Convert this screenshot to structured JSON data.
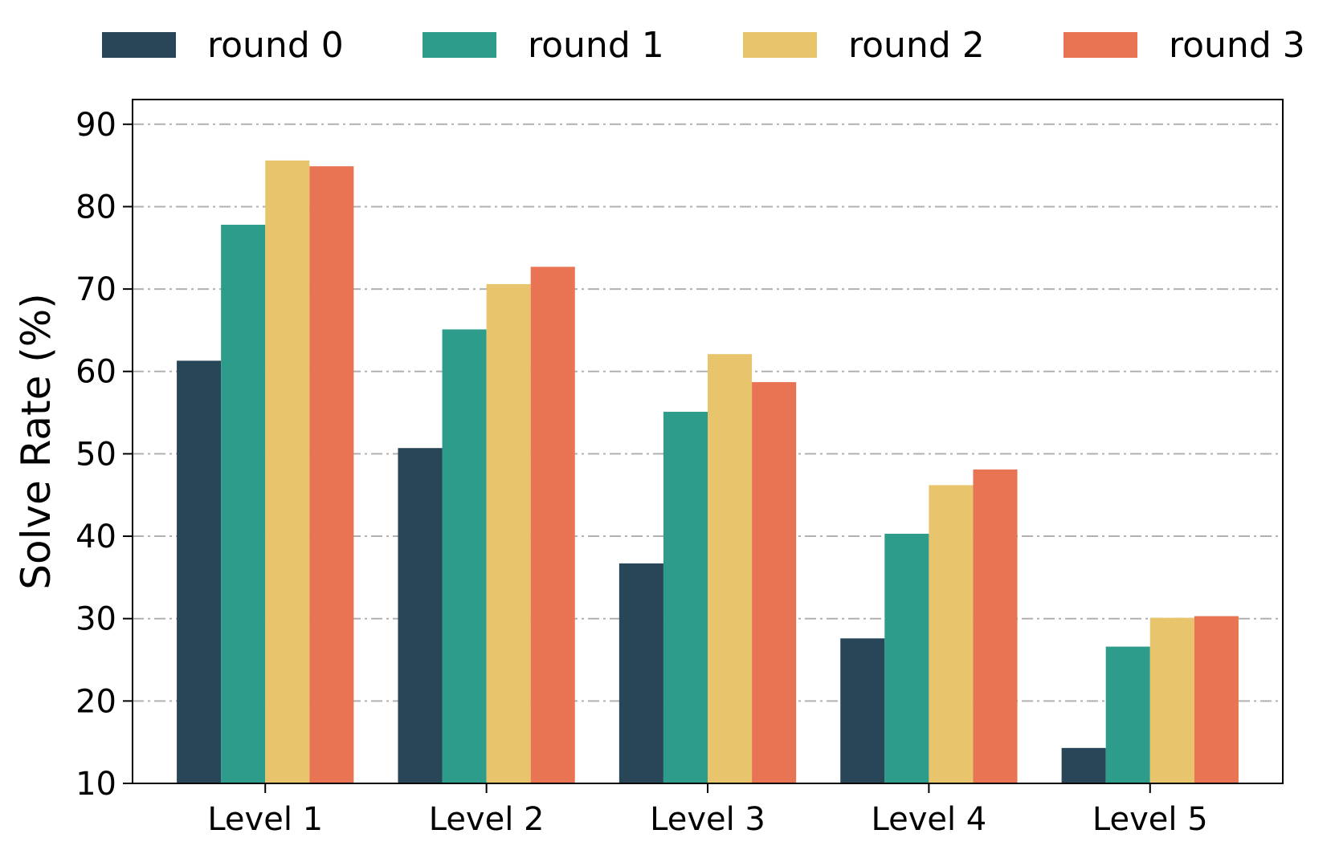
{
  "chart_data": {
    "type": "bar",
    "categories": [
      "Level 1",
      "Level 2",
      "Level 3",
      "Level 4",
      "Level 5"
    ],
    "series": [
      {
        "name": "round 0",
        "color": "#284657",
        "values": [
          61.3,
          50.7,
          36.7,
          27.6,
          14.3
        ]
      },
      {
        "name": "round 1",
        "color": "#2d9c8b",
        "values": [
          77.8,
          65.1,
          55.1,
          40.3,
          26.6
        ]
      },
      {
        "name": "round 2",
        "color": "#e8c46d",
        "values": [
          85.6,
          70.6,
          62.1,
          46.2,
          30.1
        ]
      },
      {
        "name": "round 3",
        "color": "#e87454",
        "values": [
          84.9,
          72.7,
          58.7,
          48.1,
          30.3
        ]
      }
    ],
    "title": "",
    "xlabel": "",
    "ylabel": "Solve Rate (%)",
    "ylim": [
      10,
      93
    ],
    "yticks": [
      10,
      20,
      30,
      40,
      50,
      60,
      70,
      80,
      90
    ],
    "grid": true,
    "legend_position": "top"
  }
}
